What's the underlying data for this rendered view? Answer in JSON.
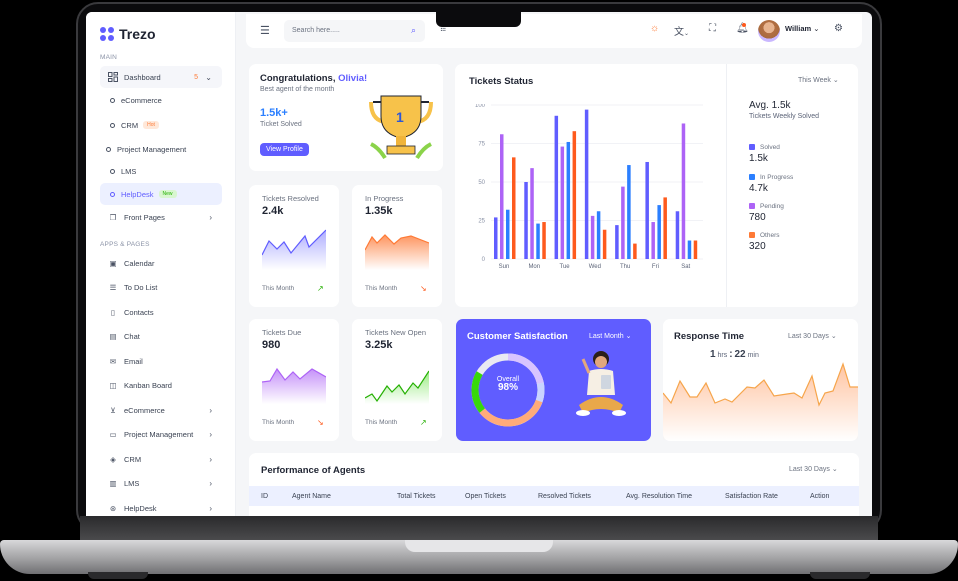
{
  "sidebar": {
    "logo": "Trezo",
    "main_label": "MAIN",
    "dashboard": {
      "label": "Dashboard",
      "count": "5"
    },
    "dashboard_children": [
      {
        "label": "eCommerce"
      },
      {
        "label": "CRM",
        "badge": "Hot"
      },
      {
        "label": "Project Management"
      },
      {
        "label": "LMS"
      },
      {
        "label": "HelpDesk",
        "badge": "New",
        "active": true
      }
    ],
    "front_pages": "Front Pages",
    "apps_label": "APPS & PAGES",
    "apps": [
      {
        "label": "Calendar",
        "icon": "calendar-icon"
      },
      {
        "label": "To Do List",
        "icon": "list-icon"
      },
      {
        "label": "Contacts",
        "icon": "contact-icon"
      },
      {
        "label": "Chat",
        "icon": "chat-icon"
      },
      {
        "label": "Email",
        "icon": "mail-icon"
      },
      {
        "label": "Kanban Board",
        "icon": "kanban-icon"
      },
      {
        "label": "eCommerce",
        "icon": "cart-icon",
        "has_children": true
      },
      {
        "label": "Project Management",
        "icon": "clipboard-icon",
        "has_children": true
      },
      {
        "label": "CRM",
        "icon": "tag-icon",
        "has_children": true
      },
      {
        "label": "LMS",
        "icon": "book-icon",
        "has_children": true
      },
      {
        "label": "HelpDesk",
        "icon": "lifebuoy-icon",
        "has_children": true
      }
    ]
  },
  "header": {
    "search_placeholder": "Search here.....",
    "user_name": "William"
  },
  "congrats": {
    "title_prefix": "Congratulations, ",
    "name": "Olivia!",
    "subtitle": "Best agent of the month",
    "value": "1.5k+",
    "value_label": "Ticket Solved",
    "button": "View Profile",
    "trophy_number": "1"
  },
  "tickets_status": {
    "title": "Tickets Status",
    "period": "This Week",
    "avg_title": "Avg. 1.5k",
    "avg_sub": "Tickets Weekly Solved",
    "legend": [
      {
        "label": "Solved",
        "value": "1.5k",
        "color": "#605dff"
      },
      {
        "label": "In Progress",
        "value": "4.7k",
        "color": "#2b7fff"
      },
      {
        "label": "Pending",
        "value": "780",
        "color": "#ad63f6"
      },
      {
        "label": "Others",
        "value": "320",
        "color": "#fe5a1d"
      }
    ]
  },
  "stats": [
    {
      "title": "Tickets Resolved",
      "value": "2.4k",
      "period": "This Month",
      "trend": "up",
      "color": "#605dff"
    },
    {
      "title": "In Progress",
      "value": "1.35k",
      "period": "This Month",
      "trend": "down",
      "color": "#fe7a36"
    },
    {
      "title": "Tickets Due",
      "value": "980",
      "period": "This Month",
      "trend": "down",
      "color": "#ad63f6"
    },
    {
      "title": "Tickets New Open",
      "value": "3.25k",
      "period": "This Month",
      "trend": "up",
      "color": "#37d80a"
    }
  ],
  "satisfaction": {
    "title": "Customer Satisfaction",
    "period": "Last Month",
    "center_label": "Overall",
    "center_value": "98%"
  },
  "response_time": {
    "title": "Response Time",
    "period": "Last 30 Days",
    "hours": "1",
    "hours_unit": "hrs",
    "sep": ":",
    "minutes": "22",
    "minutes_unit": "min"
  },
  "performance": {
    "title": "Performance of Agents",
    "period": "Last 30 Days",
    "columns": [
      "ID",
      "Agent Name",
      "Total Tickets",
      "Open Tickets",
      "Resolved Tickets",
      "Avg. Resolution Time",
      "Satisfaction Rate",
      "Action"
    ]
  },
  "chart_data": {
    "type": "bar",
    "title": "Tickets Status",
    "categories": [
      "Sun",
      "Mon",
      "Tue",
      "Wed",
      "Thu",
      "Fri",
      "Sat"
    ],
    "series": [
      {
        "name": "Solved",
        "color": "#605dff",
        "values": [
          27,
          50,
          93,
          97,
          22,
          63,
          31
        ]
      },
      {
        "name": "Pending",
        "color": "#ad63f6",
        "values": [
          81,
          59,
          73,
          28,
          47,
          24,
          88
        ]
      },
      {
        "name": "In Progress",
        "color": "#2b7fff",
        "values": [
          32,
          23,
          76,
          31,
          61,
          35,
          12
        ]
      },
      {
        "name": "Others",
        "color": "#fe5a1d",
        "values": [
          66,
          24,
          83,
          19,
          10,
          40,
          12
        ]
      }
    ],
    "yticks": [
      0,
      25,
      50,
      75,
      100
    ],
    "ylim": [
      0,
      100
    ],
    "xlabel": "",
    "ylabel": "",
    "grid": true
  }
}
